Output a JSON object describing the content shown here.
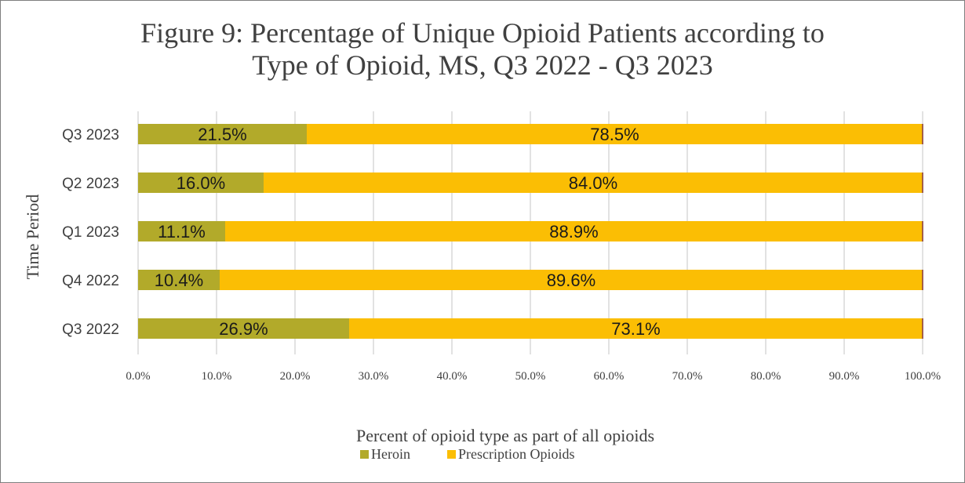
{
  "colors": {
    "heroin": "#b2aa2a",
    "prescription": "#fbbe04",
    "grid": "#d9d9d9",
    "bar_end": "#8b3a3a"
  },
  "chart_data": {
    "type": "bar",
    "orientation": "horizontal",
    "stacked": true,
    "title_lines": [
      "Figure 9: Percentage of Unique Opioid Patients according to",
      "Type of Opioid, MS, Q3 2022 - Q3 2023"
    ],
    "xlabel": "Percent of opioid type as part of all opioids",
    "ylabel": "Time Period",
    "xlim": [
      0,
      100
    ],
    "x_ticks": [
      "0.0%",
      "10.0%",
      "20.0%",
      "30.0%",
      "40.0%",
      "50.0%",
      "60.0%",
      "70.0%",
      "80.0%",
      "90.0%",
      "100.0%"
    ],
    "categories": [
      "Q3 2023",
      "Q2 2023",
      "Q1 2023",
      "Q4 2022",
      "Q3 2022"
    ],
    "series": [
      {
        "name": "Heroin",
        "values": [
          21.5,
          16.0,
          11.1,
          10.4,
          26.9
        ],
        "labels": [
          "21.5%",
          "16.0%",
          "11.1%",
          "10.4%",
          "26.9%"
        ]
      },
      {
        "name": "Prescription Opioids",
        "values": [
          78.5,
          84.0,
          88.9,
          89.6,
          73.1
        ],
        "labels": [
          "78.5%",
          "84.0%",
          "88.9%",
          "89.6%",
          "73.1%"
        ]
      }
    ],
    "grid": true,
    "legend_position": "bottom"
  }
}
